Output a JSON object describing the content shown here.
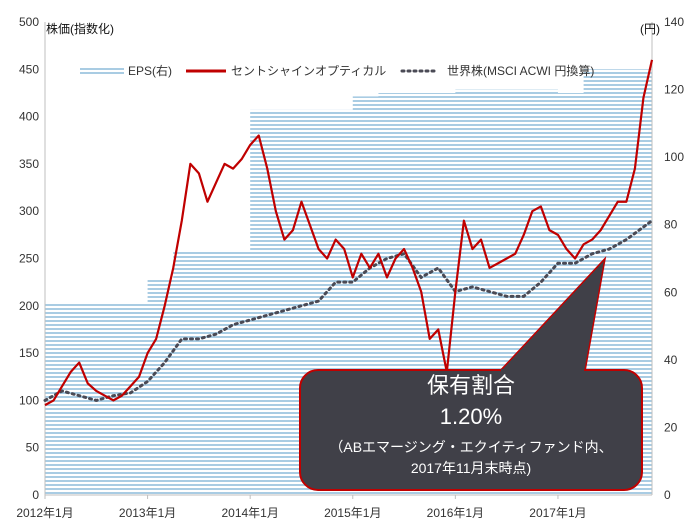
{
  "chart_data": {
    "type": "line",
    "left_axis_title": "株価(指数化)",
    "right_axis_title": "(円)",
    "ylim_left": [
      0,
      500
    ],
    "ylim_right": [
      0,
      140
    ],
    "yticks_left": [
      "0",
      "50",
      "100",
      "150",
      "200",
      "250",
      "300",
      "350",
      "400",
      "450",
      "500"
    ],
    "yticks_right": [
      "0",
      "20",
      "40",
      "60",
      "80",
      "100",
      "120",
      "140"
    ],
    "x_tick_labels": [
      "2012年1月",
      "2013年1月",
      "2014年1月",
      "2015年1月",
      "2016年1月",
      "2017年1月"
    ],
    "x_range": [
      "2012-01",
      "2017-12"
    ],
    "legend_position": "top",
    "series": [
      {
        "name": "EPS(右)",
        "axis": "right",
        "style": "horizontal-stripe-area",
        "color": "#a9cce3",
        "steps": [
          {
            "start": "2012-01",
            "value": 57
          },
          {
            "start": "2013-01",
            "value": 64
          },
          {
            "start": "2013-04",
            "value": 72
          },
          {
            "start": "2014-01",
            "value": 114
          },
          {
            "start": "2015-01",
            "value": 118
          },
          {
            "start": "2015-04",
            "value": 119
          },
          {
            "start": "2016-01",
            "value": 120
          },
          {
            "start": "2016-04",
            "value": 120
          },
          {
            "start": "2017-01",
            "value": 119
          },
          {
            "start": "2017-04",
            "value": 126
          },
          {
            "start": "2017-12",
            "value": 126
          }
        ]
      },
      {
        "name": "セントシャインオプティカル",
        "axis": "left",
        "style": "line",
        "color": "#c00000",
        "points": [
          [
            "2012-01",
            95
          ],
          [
            "2012-02",
            100
          ],
          [
            "2012-03",
            115
          ],
          [
            "2012-04",
            130
          ],
          [
            "2012-05",
            140
          ],
          [
            "2012-06",
            118
          ],
          [
            "2012-07",
            110
          ],
          [
            "2012-08",
            105
          ],
          [
            "2012-09",
            100
          ],
          [
            "2012-10",
            105
          ],
          [
            "2012-11",
            115
          ],
          [
            "2012-12",
            125
          ],
          [
            "2013-01",
            150
          ],
          [
            "2013-02",
            165
          ],
          [
            "2013-03",
            200
          ],
          [
            "2013-04",
            240
          ],
          [
            "2013-05",
            290
          ],
          [
            "2013-06",
            350
          ],
          [
            "2013-07",
            340
          ],
          [
            "2013-08",
            310
          ],
          [
            "2013-09",
            330
          ],
          [
            "2013-10",
            350
          ],
          [
            "2013-11",
            345
          ],
          [
            "2013-12",
            355
          ],
          [
            "2014-01",
            370
          ],
          [
            "2014-02",
            380
          ],
          [
            "2014-03",
            345
          ],
          [
            "2014-04",
            300
          ],
          [
            "2014-05",
            270
          ],
          [
            "2014-06",
            280
          ],
          [
            "2014-07",
            310
          ],
          [
            "2014-08",
            285
          ],
          [
            "2014-09",
            260
          ],
          [
            "2014-10",
            250
          ],
          [
            "2014-11",
            270
          ],
          [
            "2014-12",
            260
          ],
          [
            "2015-01",
            230
          ],
          [
            "2015-02",
            255
          ],
          [
            "2015-03",
            240
          ],
          [
            "2015-04",
            255
          ],
          [
            "2015-05",
            230
          ],
          [
            "2015-06",
            250
          ],
          [
            "2015-07",
            260
          ],
          [
            "2015-08",
            240
          ],
          [
            "2015-09",
            215
          ],
          [
            "2015-10",
            165
          ],
          [
            "2015-11",
            175
          ],
          [
            "2015-12",
            130
          ],
          [
            "2016-01",
            215
          ],
          [
            "2016-02",
            290
          ],
          [
            "2016-03",
            260
          ],
          [
            "2016-04",
            270
          ],
          [
            "2016-05",
            240
          ],
          [
            "2016-06",
            245
          ],
          [
            "2016-07",
            250
          ],
          [
            "2016-08",
            255
          ],
          [
            "2016-09",
            275
          ],
          [
            "2016-10",
            300
          ],
          [
            "2016-11",
            305
          ],
          [
            "2016-12",
            280
          ],
          [
            "2017-01",
            275
          ],
          [
            "2017-02",
            260
          ],
          [
            "2017-03",
            250
          ],
          [
            "2017-04",
            265
          ],
          [
            "2017-05",
            270
          ],
          [
            "2017-06",
            280
          ],
          [
            "2017-07",
            295
          ],
          [
            "2017-08",
            310
          ],
          [
            "2017-09",
            310
          ],
          [
            "2017-10",
            345
          ],
          [
            "2017-11",
            420
          ],
          [
            "2017-12",
            460
          ]
        ]
      },
      {
        "name": "世界株(MSCI ACWI 円換算)",
        "axis": "left",
        "style": "dotted",
        "color": "#4a4a55",
        "points": [
          [
            "2012-01",
            100
          ],
          [
            "2012-03",
            110
          ],
          [
            "2012-05",
            105
          ],
          [
            "2012-07",
            100
          ],
          [
            "2012-09",
            105
          ],
          [
            "2012-11",
            108
          ],
          [
            "2013-01",
            120
          ],
          [
            "2013-03",
            140
          ],
          [
            "2013-05",
            165
          ],
          [
            "2013-07",
            165
          ],
          [
            "2013-09",
            170
          ],
          [
            "2013-11",
            180
          ],
          [
            "2014-01",
            185
          ],
          [
            "2014-03",
            190
          ],
          [
            "2014-05",
            195
          ],
          [
            "2014-07",
            200
          ],
          [
            "2014-09",
            205
          ],
          [
            "2014-11",
            225
          ],
          [
            "2015-01",
            225
          ],
          [
            "2015-03",
            240
          ],
          [
            "2015-05",
            250
          ],
          [
            "2015-07",
            255
          ],
          [
            "2015-09",
            230
          ],
          [
            "2015-11",
            240
          ],
          [
            "2016-01",
            215
          ],
          [
            "2016-03",
            220
          ],
          [
            "2016-05",
            215
          ],
          [
            "2016-07",
            210
          ],
          [
            "2016-09",
            210
          ],
          [
            "2016-11",
            225
          ],
          [
            "2017-01",
            245
          ],
          [
            "2017-03",
            245
          ],
          [
            "2017-05",
            255
          ],
          [
            "2017-07",
            260
          ],
          [
            "2017-09",
            270
          ],
          [
            "2017-12",
            290
          ]
        ]
      }
    ],
    "annotation": {
      "line1": "保有割合",
      "line2": "1.20%",
      "line3": "（ABエマージング・エクイティファンド内、",
      "line4": "2017年11月末時点)",
      "fill_color": "#404048",
      "border_color": "#c00000",
      "pointer_target_date": "2017-03"
    }
  }
}
